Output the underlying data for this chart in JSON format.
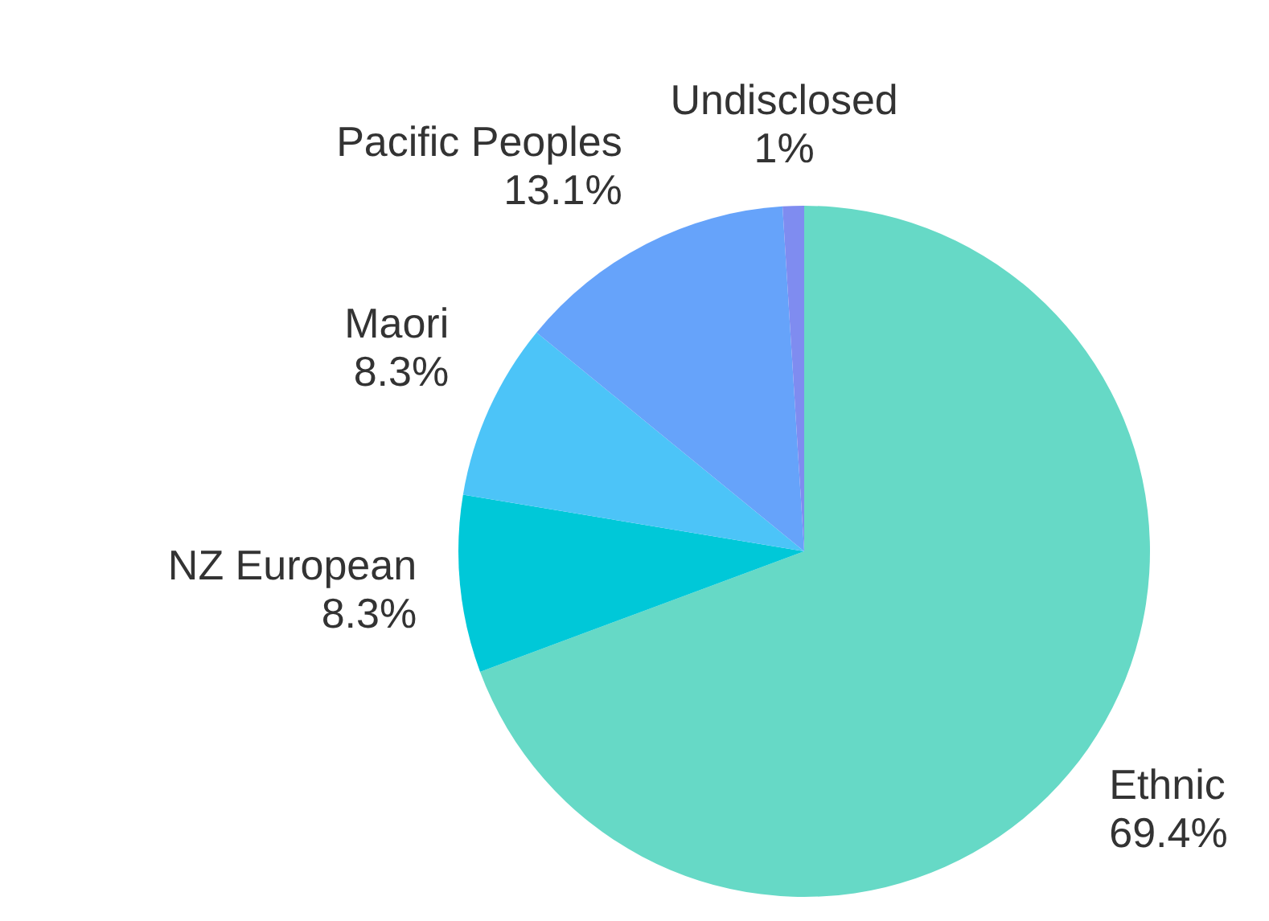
{
  "chart_data": {
    "type": "pie",
    "categories": [
      "Ethnic",
      "NZ European",
      "Maori",
      "Pacific Peoples",
      "Undisclosed"
    ],
    "values": [
      69.4,
      8.3,
      8.3,
      13.1,
      1
    ],
    "value_labels": [
      "69.4%",
      "8.3%",
      "8.3%",
      "13.1%",
      "1%"
    ],
    "colors": [
      "#66d9c6",
      "#00c8d8",
      "#4cc4f8",
      "#66a3fa",
      "#7f8cf0"
    ],
    "legend": false
  }
}
